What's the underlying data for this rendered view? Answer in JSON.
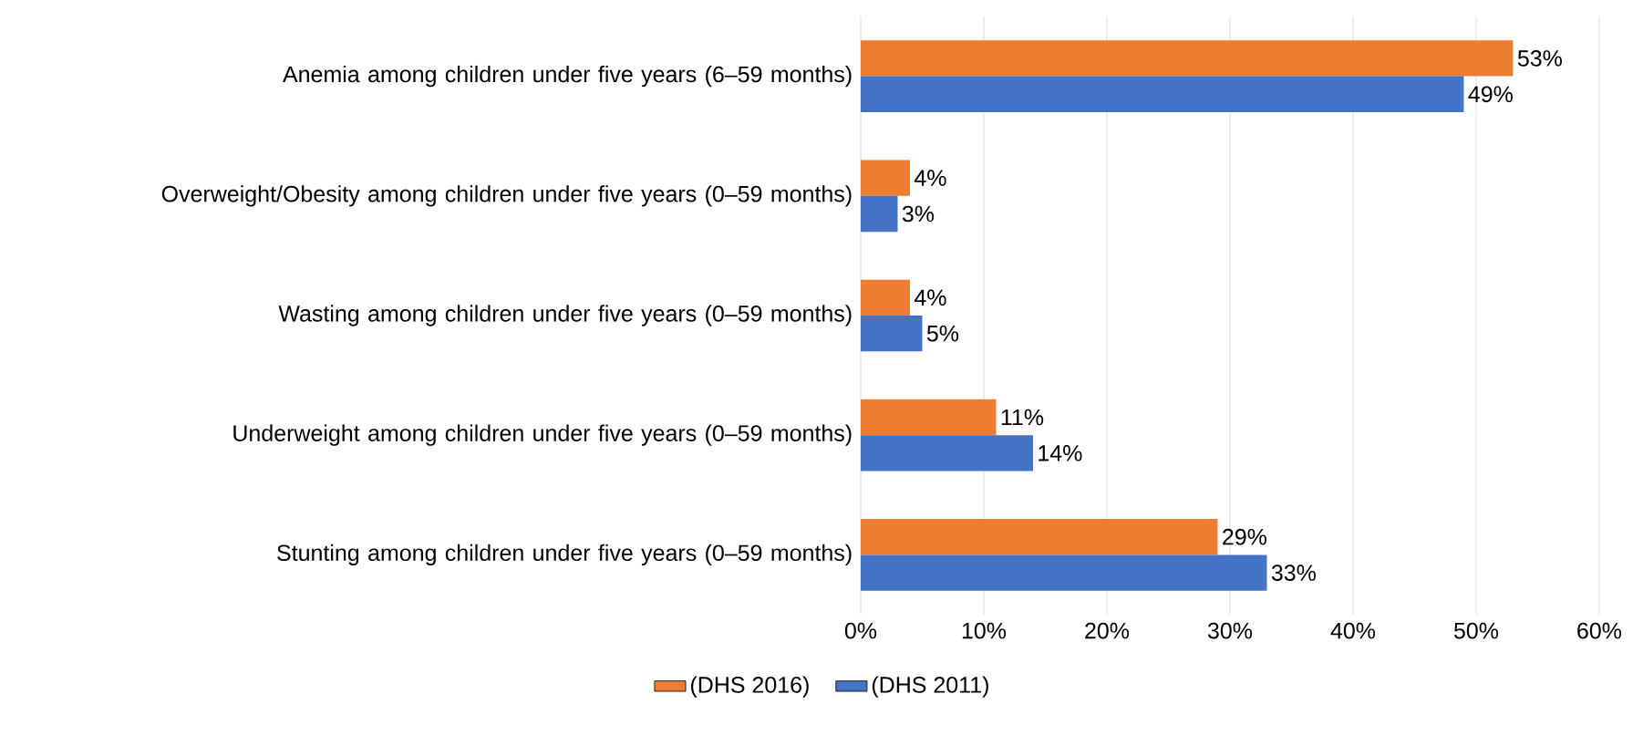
{
  "chart_data": {
    "type": "bar",
    "orientation": "horizontal",
    "categories": [
      "Anemia among children under five years (6–59 months)",
      "Overweight/Obesity among children under five years (0–59 months)",
      "Wasting among children under five years (0–59 months)",
      "Underweight among children under five years (0–59 months)",
      "Stunting among children under five years (0–59 months)"
    ],
    "series": [
      {
        "name": "(DHS 2016)",
        "color": "#ed7d31",
        "values": [
          53,
          4,
          4,
          11,
          29
        ],
        "value_labels": [
          "53%",
          "4%",
          "4%",
          "11%",
          "29%"
        ]
      },
      {
        "name": "(DHS 2011)",
        "color": "#4472c4",
        "values": [
          49,
          3,
          5,
          14,
          33
        ],
        "value_labels": [
          "49%",
          "3%",
          "5%",
          "14%",
          "33%"
        ]
      }
    ],
    "xlim": [
      0,
      60
    ],
    "xticks": [
      {
        "value": 0,
        "label": "0%"
      },
      {
        "value": 10,
        "label": "10%"
      },
      {
        "value": 20,
        "label": "20%"
      },
      {
        "value": 30,
        "label": "30%"
      },
      {
        "value": 40,
        "label": "40%"
      },
      {
        "value": 50,
        "label": "50%"
      },
      {
        "value": 60,
        "label": "60%"
      }
    ],
    "grid": "x",
    "legend": "bottom"
  }
}
